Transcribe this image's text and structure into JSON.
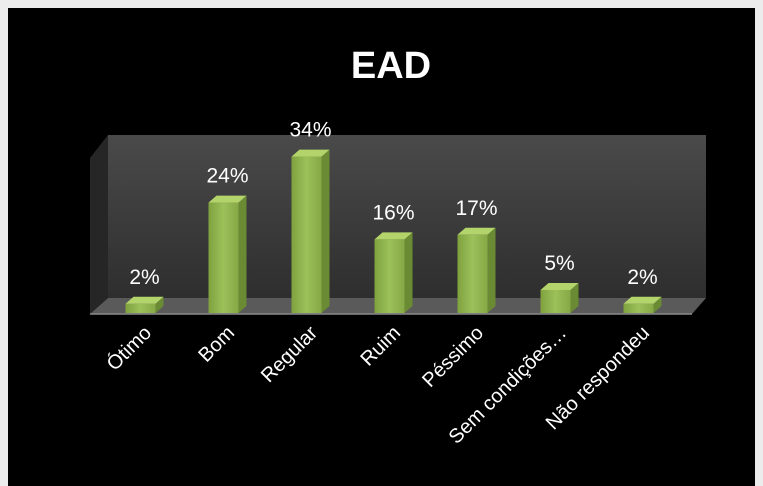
{
  "chart_data": {
    "type": "bar",
    "title": "EAD",
    "categories": [
      "Ótimo",
      "Bom",
      "Regular",
      "Ruim",
      "Péssimo",
      "Sem condições…",
      "Não respondeu"
    ],
    "values": [
      2,
      24,
      34,
      16,
      17,
      5,
      2
    ],
    "data_labels": [
      "2%",
      "24%",
      "34%",
      "16%",
      "17%",
      "5%",
      "2%"
    ],
    "unit": "%",
    "ylim": [
      0,
      35
    ],
    "grid": false,
    "legend": "none",
    "style": "3d-column",
    "colors": {
      "bar_front": "#8db04a",
      "bar_top": "#b3d46a",
      "bar_side": "#6a8a34",
      "back_wall": "#3a3a3a",
      "floor": "#6e6e6e",
      "background": "#000000",
      "text": "#ffffff"
    }
  }
}
